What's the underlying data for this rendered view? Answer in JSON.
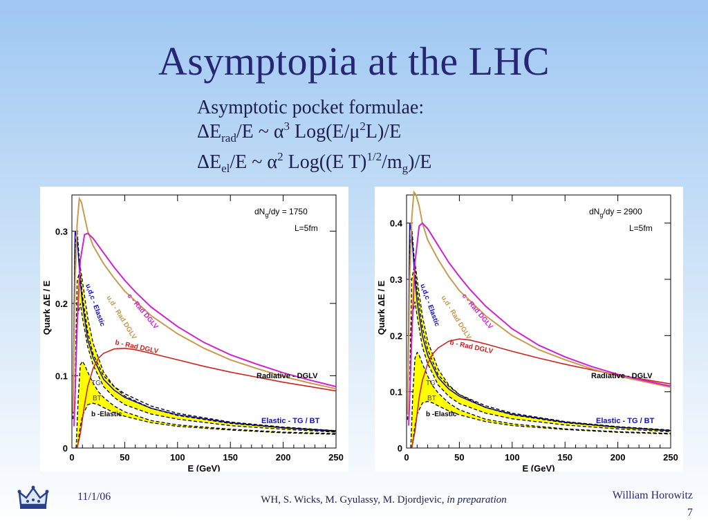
{
  "slide": {
    "title": "Asymptopia at the LHC",
    "subtitle_line1": "Asymptotic pocket formulae:",
    "formula1": {
      "delta_E": "ΔE",
      "sub": "rad",
      "mid": "/E ~ α",
      "sup": "3",
      "tail1": " Log(E/μ",
      "sup2": "2",
      "tail2": "L)/E"
    },
    "formula2": {
      "delta_E": "ΔE",
      "sub": "el",
      "mid": "/E ~ α",
      "sup": "2",
      "tail1": " Log((E T)",
      "sup2": "1/2",
      "tail2": "/m",
      "sub2": "g",
      "tail3": ")/E"
    },
    "footer_date": "11/1/06",
    "footer_center_main": "WH, S. Wicks, M. Gyulassy, M. Djordjevic, ",
    "footer_center_italic": "in preparation",
    "footer_author": "William Horowitz",
    "page_number": "7",
    "logo_icon": "crown-icon"
  },
  "colors": {
    "title": "#262675",
    "magenta": "#d020d0",
    "tan": "#c89a4e",
    "red": "#cc2222",
    "blue": "#1010cc",
    "yellow": "#ffff00",
    "black": "#000000"
  },
  "chart_data": [
    {
      "type": "line",
      "xlabel": "E (GeV)",
      "ylabel": "Quark ΔE / E",
      "xlim": [
        0,
        250
      ],
      "ylim": [
        0,
        0.35
      ],
      "xticks": [
        0,
        50,
        100,
        150,
        200,
        250
      ],
      "yticks": [
        0,
        0.1,
        0.2,
        0.3
      ],
      "ytick_labels": [
        "0",
        "0.1",
        "0.2",
        "0.3"
      ],
      "annotation1_main": "dN",
      "annotation1_sub": "g",
      "annotation1_tail": "/dy = 1750",
      "annotation2": "L=5fm",
      "labels": {
        "c_rad": "c - Rad DGLV",
        "ud_rad": "u,d - Rad DGLV",
        "udc_el": "u,d,c - Elastic",
        "b_rad": "b - Rad DGLV",
        "radiative": "Radiative - DGLV",
        "tg": "TG",
        "bt": "BT",
        "b_el": "b -Elastic",
        "elastic": "Elastic - TG / BT"
      },
      "series": [
        {
          "key": "c_rad",
          "x": [
            2,
            5,
            8,
            12,
            15,
            20,
            30,
            40,
            50,
            60,
            75,
            100,
            125,
            150,
            175,
            200,
            225,
            250
          ],
          "y": [
            0.03,
            0.17,
            0.26,
            0.295,
            0.297,
            0.29,
            0.27,
            0.25,
            0.232,
            0.216,
            0.195,
            0.168,
            0.146,
            0.129,
            0.116,
            0.104,
            0.094,
            0.085
          ]
        },
        {
          "key": "ud_rad",
          "x": [
            1,
            3,
            5,
            7,
            9,
            12,
            15,
            20,
            30,
            40,
            50,
            75,
            100,
            125,
            150,
            175,
            200,
            225,
            250
          ],
          "y": [
            0.05,
            0.23,
            0.31,
            0.345,
            0.34,
            0.32,
            0.3,
            0.28,
            0.255,
            0.235,
            0.217,
            0.183,
            0.158,
            0.138,
            0.122,
            0.11,
            0.099,
            0.09,
            0.082
          ]
        },
        {
          "key": "b_rad",
          "x": [
            5,
            8,
            12,
            15,
            20,
            25,
            30,
            40,
            50,
            60,
            75,
            100,
            125,
            150,
            175,
            200,
            225,
            250
          ],
          "y": [
            0.0,
            0.02,
            0.06,
            0.085,
            0.11,
            0.124,
            0.131,
            0.137,
            0.138,
            0.136,
            0.131,
            0.122,
            0.113,
            0.105,
            0.098,
            0.091,
            0.085,
            0.079
          ]
        },
        {
          "key": "udc_el_dash",
          "x": [
            1,
            3,
            5,
            8,
            10,
            15,
            20,
            30,
            40,
            50,
            75,
            100,
            150,
            200,
            250
          ],
          "y": [
            0.04,
            0.28,
            0.3,
            0.24,
            0.21,
            0.16,
            0.13,
            0.1,
            0.085,
            0.075,
            0.058,
            0.048,
            0.036,
            0.029,
            0.024
          ]
        },
        {
          "key": "tg_upper",
          "x": [
            3,
            5,
            8,
            10,
            15,
            20,
            30,
            40,
            50,
            75,
            100,
            150,
            200,
            250
          ],
          "y": [
            0.09,
            0.23,
            0.25,
            0.23,
            0.18,
            0.145,
            0.105,
            0.085,
            0.072,
            0.055,
            0.045,
            0.034,
            0.028,
            0.024
          ]
        },
        {
          "key": "bt_lower",
          "x": [
            3,
            5,
            8,
            10,
            15,
            20,
            30,
            40,
            50,
            75,
            100,
            150,
            200,
            250
          ],
          "y": [
            0.06,
            0.18,
            0.2,
            0.18,
            0.14,
            0.115,
            0.085,
            0.07,
            0.06,
            0.047,
            0.04,
            0.031,
            0.026,
            0.022
          ]
        },
        {
          "key": "b_el_upper",
          "x": [
            4,
            6,
            8,
            10,
            12,
            15,
            20,
            25,
            30,
            40,
            50,
            75,
            100,
            150,
            200,
            250
          ],
          "y": [
            0.0,
            0.07,
            0.115,
            0.12,
            0.115,
            0.105,
            0.09,
            0.078,
            0.07,
            0.058,
            0.05,
            0.038,
            0.032,
            0.026,
            0.022,
            0.02
          ]
        },
        {
          "key": "b_el_lower",
          "x": [
            5,
            8,
            10,
            15,
            20,
            25,
            30,
            40,
            50,
            75,
            100,
            150,
            200,
            250
          ],
          "y": [
            0.0,
            0.03,
            0.045,
            0.06,
            0.062,
            0.06,
            0.056,
            0.049,
            0.044,
            0.035,
            0.03,
            0.025,
            0.021,
            0.019
          ]
        },
        {
          "key": "elastic_blue",
          "x": [
            1,
            3,
            5,
            8,
            10,
            15,
            20,
            30,
            40,
            50,
            75,
            100,
            150,
            200,
            250
          ],
          "y": [
            0.05,
            0.3,
            0.29,
            0.23,
            0.2,
            0.15,
            0.125,
            0.095,
            0.08,
            0.07,
            0.055,
            0.046,
            0.035,
            0.028,
            0.023
          ]
        }
      ]
    },
    {
      "type": "line",
      "xlabel": "E (GeV)",
      "ylabel": "Quark ΔE / E",
      "xlim": [
        0,
        250
      ],
      "ylim": [
        0,
        0.45
      ],
      "xticks": [
        0,
        50,
        100,
        150,
        200,
        250
      ],
      "yticks": [
        0,
        0.1,
        0.2,
        0.3,
        0.4
      ],
      "ytick_labels": [
        "0",
        "0.1",
        "0.2",
        "0.3",
        "0.4"
      ],
      "annotation1_main": "dN",
      "annotation1_sub": "g",
      "annotation1_tail": "/dy = 2900",
      "annotation2": "L=5fm",
      "labels": {
        "c_rad": "c - Rad DGLV",
        "ud_rad": "u,d - Rad DGLV",
        "udc_el": "u,d,c - Elastic",
        "b_rad": "b - Rad DGLV",
        "radiative": "Radiative - DGLV",
        "tg": "TG",
        "bt": "BT",
        "b_el": "b -Elastic",
        "elastic": "Elastic - TG / BT"
      },
      "series": [
        {
          "key": "c_rad",
          "x": [
            2,
            5,
            8,
            12,
            15,
            20,
            30,
            40,
            50,
            60,
            75,
            100,
            125,
            150,
            175,
            200,
            225,
            250
          ],
          "y": [
            0.04,
            0.2,
            0.33,
            0.395,
            0.4,
            0.39,
            0.36,
            0.33,
            0.305,
            0.282,
            0.252,
            0.212,
            0.183,
            0.162,
            0.145,
            0.131,
            0.12,
            0.11
          ]
        },
        {
          "key": "ud_rad",
          "x": [
            1,
            3,
            5,
            7,
            9,
            12,
            15,
            20,
            30,
            40,
            50,
            75,
            100,
            125,
            150,
            175,
            200,
            225,
            250
          ],
          "y": [
            0.06,
            0.3,
            0.41,
            0.455,
            0.45,
            0.43,
            0.4,
            0.37,
            0.335,
            0.305,
            0.28,
            0.235,
            0.2,
            0.175,
            0.157,
            0.141,
            0.128,
            0.118,
            0.108
          ]
        },
        {
          "key": "b_rad",
          "x": [
            5,
            8,
            12,
            15,
            20,
            25,
            30,
            40,
            50,
            60,
            75,
            100,
            125,
            150,
            175,
            200,
            225,
            250
          ],
          "y": [
            0.0,
            0.03,
            0.09,
            0.12,
            0.15,
            0.168,
            0.178,
            0.19,
            0.194,
            0.192,
            0.185,
            0.172,
            0.16,
            0.149,
            0.139,
            0.13,
            0.122,
            0.114
          ]
        },
        {
          "key": "udc_el_dash",
          "x": [
            1,
            3,
            5,
            8,
            10,
            15,
            20,
            30,
            40,
            50,
            75,
            100,
            150,
            200,
            250
          ],
          "y": [
            0.05,
            0.36,
            0.39,
            0.32,
            0.28,
            0.215,
            0.175,
            0.13,
            0.11,
            0.095,
            0.075,
            0.062,
            0.047,
            0.038,
            0.032
          ]
        },
        {
          "key": "tg_upper",
          "x": [
            3,
            5,
            8,
            10,
            15,
            20,
            30,
            40,
            50,
            75,
            100,
            150,
            200,
            250
          ],
          "y": [
            0.12,
            0.3,
            0.33,
            0.3,
            0.235,
            0.19,
            0.14,
            0.112,
            0.095,
            0.072,
            0.059,
            0.045,
            0.037,
            0.031
          ]
        },
        {
          "key": "bt_lower",
          "x": [
            3,
            5,
            8,
            10,
            15,
            20,
            30,
            40,
            50,
            75,
            100,
            150,
            200,
            250
          ],
          "y": [
            0.08,
            0.23,
            0.26,
            0.235,
            0.18,
            0.15,
            0.112,
            0.092,
            0.079,
            0.062,
            0.052,
            0.041,
            0.034,
            0.029
          ]
        },
        {
          "key": "b_el_upper",
          "x": [
            4,
            6,
            8,
            10,
            12,
            15,
            20,
            25,
            30,
            40,
            50,
            75,
            100,
            150,
            200,
            250
          ],
          "y": [
            0.0,
            0.1,
            0.16,
            0.17,
            0.165,
            0.15,
            0.128,
            0.11,
            0.098,
            0.08,
            0.068,
            0.051,
            0.043,
            0.034,
            0.029,
            0.026
          ]
        },
        {
          "key": "b_el_lower",
          "x": [
            5,
            8,
            10,
            15,
            20,
            25,
            30,
            40,
            50,
            75,
            100,
            150,
            200,
            250
          ],
          "y": [
            0.0,
            0.04,
            0.06,
            0.08,
            0.083,
            0.08,
            0.075,
            0.066,
            0.059,
            0.047,
            0.04,
            0.033,
            0.028,
            0.025
          ]
        },
        {
          "key": "elastic_blue",
          "x": [
            1,
            3,
            5,
            8,
            10,
            15,
            20,
            30,
            40,
            50,
            75,
            100,
            150,
            200,
            250
          ],
          "y": [
            0.06,
            0.4,
            0.38,
            0.3,
            0.26,
            0.2,
            0.165,
            0.125,
            0.105,
            0.092,
            0.072,
            0.06,
            0.046,
            0.037,
            0.031
          ]
        }
      ]
    }
  ]
}
